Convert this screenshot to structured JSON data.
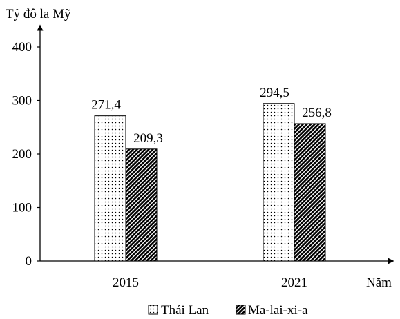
{
  "chart_data": {
    "type": "bar",
    "ylabel": "Tỷ đô la Mỹ",
    "xlabel": "Năm",
    "categories": [
      "2015",
      "2021"
    ],
    "ylim": [
      0,
      400
    ],
    "yticks": [
      0,
      100,
      200,
      300,
      400
    ],
    "ytick_labels": [
      "0",
      "100",
      "200",
      "300",
      "400"
    ],
    "grid": false,
    "legend_position": "bottom",
    "series": [
      {
        "name": "Thái Lan",
        "values": [
          271.4,
          294.5
        ],
        "value_labels": [
          "271,4",
          "294,5"
        ],
        "pattern": "dots",
        "color": "#ffffff"
      },
      {
        "name": "Ma-lai-xi-a",
        "values": [
          209.3,
          256.8
        ],
        "value_labels": [
          "209,3",
          "256,8"
        ],
        "pattern": "diagonal-hatch",
        "color": "#000000"
      }
    ]
  }
}
